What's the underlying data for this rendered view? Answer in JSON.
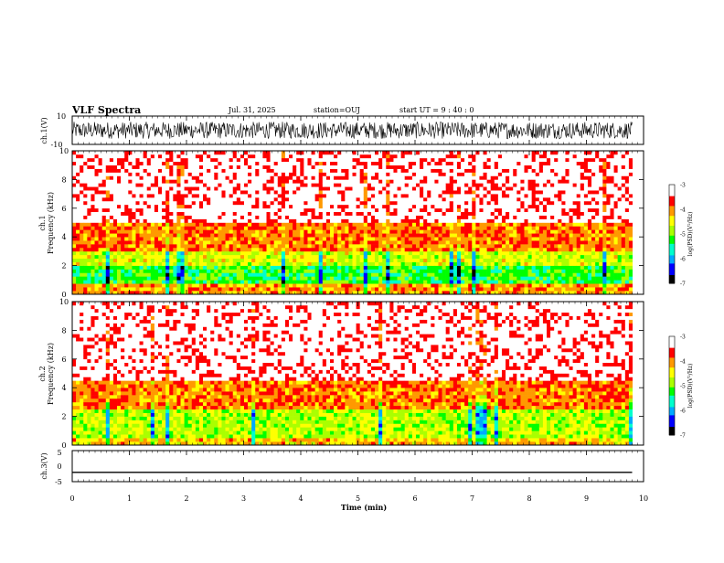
{
  "header": {
    "title": "VLF Spectra",
    "date": "Jul. 31, 2025",
    "station": "station=OUJ",
    "start_ut": "start UT =  9 : 40 : 0"
  },
  "colors": {
    "colormap": [
      "#000000",
      "#0000ff",
      "#00aaff",
      "#00ffcc",
      "#00ff00",
      "#aaff00",
      "#ffff00",
      "#ff9900",
      "#ff0000",
      "#ffffff"
    ],
    "trace": "#000000"
  },
  "chart_data": [
    {
      "id": "ch1_waveform",
      "type": "line",
      "ylabel": "ch.1(V)",
      "ylim": [
        -10,
        10
      ],
      "yticks": [
        "10",
        "-10"
      ],
      "xlim": [
        0,
        10
      ],
      "description_values": {
        "amplitude_typical": [
          -6,
          6
        ]
      }
    },
    {
      "id": "ch1_spectrogram",
      "type": "heatmap",
      "ylabel": "ch.1",
      "ylabel2": "Frequency (kHz)",
      "ylim": [
        0,
        10
      ],
      "yticks": [
        "0",
        "2",
        "4",
        "6",
        "8",
        "10"
      ],
      "xlim": [
        0,
        10
      ],
      "colorbar": {
        "label": "log(PSD)(V²/Hz)",
        "ticks": [
          "-3",
          "-4",
          "-5",
          "-6",
          "-7"
        ],
        "range": [
          -7,
          -3
        ]
      },
      "bands": [
        {
          "freq": [
            0,
            0.6
          ],
          "level": -4.0
        },
        {
          "freq": [
            0.6,
            2.0
          ],
          "level": -5.2
        },
        {
          "freq": [
            2.0,
            3.0
          ],
          "level": -4.6
        },
        {
          "freq": [
            3.0,
            5.0
          ],
          "level": -3.9
        },
        {
          "freq": [
            5.0,
            10.0
          ],
          "level": -3.2
        }
      ]
    },
    {
      "id": "ch2_spectrogram",
      "type": "heatmap",
      "ylabel": "ch.2",
      "ylabel2": "Frequency (kHz)",
      "ylim": [
        0,
        10
      ],
      "yticks": [
        "0",
        "2",
        "4",
        "6",
        "8",
        "10"
      ],
      "xlim": [
        0,
        10
      ],
      "colorbar": {
        "label": "log(PSD)(V²/Hz)",
        "ticks": [
          "-3",
          "-4",
          "-5",
          "-6",
          "-7"
        ],
        "range": [
          -7,
          -3
        ]
      },
      "bands": [
        {
          "freq": [
            0,
            0.5
          ],
          "level": -4.2
        },
        {
          "freq": [
            0.5,
            2.5
          ],
          "level": -4.7
        },
        {
          "freq": [
            2.5,
            4.5
          ],
          "level": -3.9
        },
        {
          "freq": [
            4.5,
            10.0
          ],
          "level": -3.2
        }
      ]
    },
    {
      "id": "ch3_waveform",
      "type": "line",
      "ylabel": "ch.3(V)",
      "ylim": [
        -5,
        5
      ],
      "yticks": [
        "5",
        "0",
        "-5"
      ],
      "xlim": [
        0,
        10
      ],
      "values": {
        "x": [
          0,
          9.8
        ],
        "y": [
          -2,
          -2
        ]
      }
    }
  ],
  "xaxis": {
    "label": "Time (min)",
    "ticks": [
      "0",
      "1",
      "2",
      "3",
      "4",
      "5",
      "6",
      "7",
      "8",
      "9",
      "10"
    ]
  }
}
